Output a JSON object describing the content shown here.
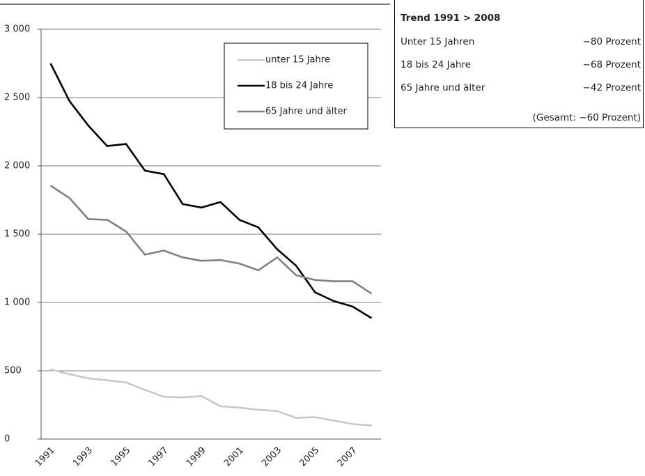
{
  "chart_data": {
    "type": "line",
    "categories": [
      "1991",
      null,
      "1993",
      null,
      "1995",
      null,
      "1997",
      null,
      "1999",
      null,
      "2001",
      null,
      "2003",
      null,
      "2005",
      null,
      "2007",
      null
    ],
    "series": [
      {
        "name": "unter 15 Jahre",
        "color": "#c8c8c8",
        "values": [
          510,
          475,
          445,
          430,
          415,
          360,
          310,
          305,
          315,
          240,
          230,
          215,
          205,
          155,
          160,
          135,
          110,
          100
        ]
      },
      {
        "name": "18 bis 24 Jahre",
        "color": "#000000",
        "values": [
          2750,
          2475,
          2295,
          2145,
          2160,
          1965,
          1940,
          1720,
          1695,
          1735,
          1605,
          1550,
          1390,
          1270,
          1075,
          1010,
          970,
          885
        ]
      },
      {
        "name": "65 Jahre und älter",
        "color": "#808080",
        "values": [
          1855,
          1765,
          1610,
          1605,
          1520,
          1350,
          1380,
          1330,
          1305,
          1310,
          1285,
          1235,
          1330,
          1200,
          1165,
          1155,
          1155,
          1065
        ]
      }
    ],
    "ylim": [
      0,
      3000
    ],
    "yticks": [
      0,
      500,
      {
        "value": 1000,
        "label": "1 000"
      },
      {
        "value": 1500,
        "label": "1 500"
      },
      {
        "value": 2000,
        "label": "2 000"
      },
      {
        "value": 2500,
        "label": "2 500"
      },
      {
        "value": 3000,
        "label": "3 000"
      }
    ],
    "grid": true
  },
  "table": {
    "title": "Trend 1991 > 2008",
    "rows": [
      [
        "Unter 15 Jahren",
        "−80 Prozent"
      ],
      [
        "18 bis 24 Jahre",
        "−68 Prozent"
      ],
      [
        "65 Jahre und älter",
        "−42 Prozent"
      ]
    ],
    "total": "(Gesamt: −60 Prozent)"
  }
}
